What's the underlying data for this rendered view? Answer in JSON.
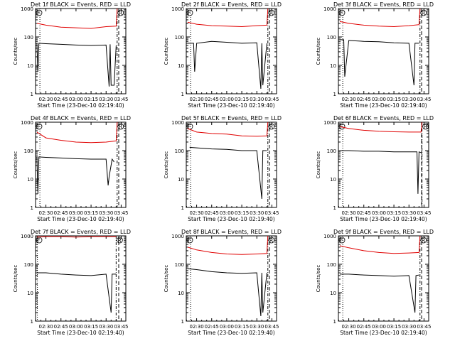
{
  "figure": {
    "x_ticks": [
      "02:30",
      "02:45",
      "03:00",
      "03:15",
      "03:30",
      "03:45"
    ],
    "y_ticks": [
      "1",
      "10",
      "100",
      "1000"
    ],
    "ylabel": "Counts/sec",
    "xlabel": "Start Time (23-Dec-10 02:19:40)",
    "marker_left": "F",
    "marker_right": "R",
    "colors": {
      "events": "#000000",
      "lld": "#e00000",
      "axes": "#000000"
    }
  },
  "chart_data": [
    {
      "type": "line",
      "title": "Det 1f BLACK = Events, RED = LLD",
      "yscale": "log",
      "ylim": [
        1,
        1000
      ],
      "xlabel": "Start Time (23-Dec-10 02:19:40)",
      "ylabel": "Counts/sec",
      "series": [
        {
          "name": "Events",
          "color": "#000000",
          "x": [
            "02:21",
            "02:22",
            "02:23",
            "02:30",
            "02:45",
            "03:00",
            "03:15",
            "03:30",
            "03:33",
            "03:34",
            "03:35",
            "03:38",
            "03:40"
          ],
          "y": [
            60,
            6,
            60,
            58,
            55,
            52,
            50,
            52,
            1.8,
            55,
            2,
            2,
            50
          ]
        },
        {
          "name": "LLD",
          "color": "#e00000",
          "x": [
            "02:21",
            "02:30",
            "02:45",
            "03:00",
            "03:15",
            "03:30",
            "03:40",
            "03:41"
          ],
          "y": [
            300,
            260,
            220,
            210,
            200,
            230,
            240,
            1000
          ]
        }
      ]
    },
    {
      "type": "line",
      "title": "Det 2f BLACK = Events, RED = LLD",
      "yscale": "log",
      "ylim": [
        1,
        1000
      ],
      "xlabel": "Start Time (23-Dec-10 02:19:40)",
      "ylabel": "Counts/sec",
      "series": [
        {
          "name": "Events",
          "color": "#000000",
          "x": [
            "02:21",
            "02:27",
            "02:28",
            "02:30",
            "02:45",
            "03:00",
            "03:15",
            "03:30",
            "03:34",
            "03:35",
            "03:36",
            "03:40"
          ],
          "y": [
            60,
            60,
            6,
            60,
            70,
            65,
            60,
            62,
            1.5,
            60,
            2,
            60
          ]
        },
        {
          "name": "LLD",
          "color": "#e00000",
          "x": [
            "02:21",
            "02:30",
            "02:45",
            "03:00",
            "03:15",
            "03:30",
            "03:40",
            "03:41"
          ],
          "y": [
            330,
            280,
            250,
            240,
            230,
            250,
            260,
            1000
          ]
        }
      ]
    },
    {
      "type": "line",
      "title": "Det 3f BLACK = Events, RED = LLD",
      "yscale": "log",
      "ylim": [
        1,
        1000
      ],
      "xlabel": "Start Time (23-Dec-10 02:19:40)",
      "ylabel": "Counts/sec",
      "series": [
        {
          "name": "Events",
          "color": "#000000",
          "x": [
            "02:21",
            "02:25",
            "02:26",
            "02:30",
            "02:45",
            "03:00",
            "03:15",
            "03:30",
            "03:35",
            "03:36",
            "03:40"
          ],
          "y": [
            80,
            80,
            4,
            75,
            70,
            68,
            62,
            60,
            2,
            60,
            60
          ]
        },
        {
          "name": "LLD",
          "color": "#e00000",
          "x": [
            "02:21",
            "02:30",
            "02:45",
            "03:00",
            "03:15",
            "03:30",
            "03:40",
            "03:41"
          ],
          "y": [
            350,
            300,
            260,
            240,
            230,
            250,
            270,
            1000
          ]
        }
      ]
    },
    {
      "type": "line",
      "title": "Det 4f BLACK = Events, RED = LLD",
      "yscale": "log",
      "ylim": [
        1,
        1000
      ],
      "xlabel": "Start Time (23-Dec-10 02:19:40)",
      "ylabel": "Counts/sec",
      "series": [
        {
          "name": "Events",
          "color": "#000000",
          "x": [
            "02:21",
            "02:22",
            "02:23",
            "02:30",
            "02:45",
            "03:00",
            "03:15",
            "03:30",
            "03:32",
            "03:33",
            "03:36",
            "03:38"
          ],
          "y": [
            60,
            3,
            60,
            58,
            55,
            52,
            50,
            50,
            6,
            12,
            50,
            40
          ]
        },
        {
          "name": "LLD",
          "color": "#e00000",
          "x": [
            "02:21",
            "02:30",
            "02:45",
            "03:00",
            "03:15",
            "03:30",
            "03:40",
            "03:41"
          ],
          "y": [
            450,
            280,
            230,
            200,
            190,
            200,
            220,
            1000
          ]
        }
      ]
    },
    {
      "type": "line",
      "title": "Det 5f BLACK = Events, RED = LLD",
      "yscale": "log",
      "ylim": [
        1,
        1000
      ],
      "xlabel": "Start Time (23-Dec-10 02:19:40)",
      "ylabel": "Counts/sec",
      "series": [
        {
          "name": "Events",
          "color": "#000000",
          "x": [
            "02:23",
            "02:30",
            "02:45",
            "03:00",
            "03:15",
            "03:30",
            "03:35",
            "03:36",
            "03:40"
          ],
          "y": [
            130,
            125,
            115,
            110,
            100,
            100,
            2,
            100,
            100
          ]
        },
        {
          "name": "LLD",
          "color": "#e00000",
          "x": [
            "02:21",
            "02:30",
            "02:45",
            "03:00",
            "03:15",
            "03:30",
            "03:40",
            "03:41"
          ],
          "y": [
            600,
            450,
            400,
            380,
            330,
            320,
            330,
            1000
          ]
        }
      ]
    },
    {
      "type": "line",
      "title": "Det 6f BLACK = Events, RED = LLD",
      "yscale": "log",
      "ylim": [
        1,
        1000
      ],
      "xlabel": "Start Time (23-Dec-10 02:19:40)",
      "ylabel": "Counts/sec",
      "series": [
        {
          "name": "Events",
          "color": "#000000",
          "x": [
            "02:23",
            "02:30",
            "02:45",
            "03:00",
            "03:15",
            "03:30",
            "03:38",
            "03:39",
            "03:40",
            "03:42"
          ],
          "y": [
            100,
            100,
            95,
            95,
            90,
            90,
            90,
            3,
            90,
            85
          ]
        },
        {
          "name": "LLD",
          "color": "#e00000",
          "x": [
            "02:21",
            "02:30",
            "02:45",
            "03:00",
            "03:15",
            "03:30",
            "03:42",
            "03:43"
          ],
          "y": [
            700,
            600,
            520,
            480,
            460,
            450,
            450,
            1000
          ]
        }
      ]
    },
    {
      "type": "line",
      "title": "Det 7f BLACK = Events, RED = LLD",
      "yscale": "log",
      "ylim": [
        1,
        1000
      ],
      "xlabel": "Start Time (23-Dec-10 02:19:40)",
      "ylabel": "Counts/sec",
      "series": [
        {
          "name": "Events",
          "color": "#000000",
          "x": [
            "02:21",
            "02:30",
            "02:45",
            "03:00",
            "03:15",
            "03:30",
            "03:35",
            "03:36",
            "03:40"
          ],
          "y": [
            50,
            50,
            45,
            42,
            40,
            45,
            2,
            45,
            45
          ]
        },
        {
          "name": "LLD",
          "color": "#e00000",
          "x": [
            "02:21",
            "02:30",
            "02:45",
            "03:00",
            "03:15",
            "03:30",
            "03:40"
          ],
          "y": [
            900,
            950,
            950,
            900,
            950,
            950,
            950
          ]
        }
      ]
    },
    {
      "type": "line",
      "title": "Det 8f BLACK = Events, RED = LLD",
      "yscale": "log",
      "ylim": [
        1,
        1000
      ],
      "xlabel": "Start Time (23-Dec-10 02:19:40)",
      "ylabel": "Counts/sec",
      "series": [
        {
          "name": "Events",
          "color": "#000000",
          "x": [
            "02:21",
            "02:30",
            "02:45",
            "03:00",
            "03:15",
            "03:30",
            "03:34",
            "03:35",
            "03:36",
            "03:40"
          ],
          "y": [
            70,
            65,
            55,
            50,
            48,
            50,
            1.5,
            50,
            2,
            50
          ]
        },
        {
          "name": "LLD",
          "color": "#e00000",
          "x": [
            "02:21",
            "02:30",
            "02:45",
            "03:00",
            "03:15",
            "03:30",
            "03:40",
            "03:41"
          ],
          "y": [
            400,
            320,
            260,
            230,
            220,
            230,
            240,
            1000
          ]
        }
      ]
    },
    {
      "type": "line",
      "title": "Det 9f BLACK = Events, RED = LLD",
      "yscale": "log",
      "ylim": [
        1,
        1000
      ],
      "xlabel": "Start Time (23-Dec-10 02:19:40)",
      "ylabel": "Counts/sec",
      "series": [
        {
          "name": "Events",
          "color": "#000000",
          "x": [
            "02:21",
            "02:30",
            "02:45",
            "03:00",
            "03:15",
            "03:30",
            "03:36",
            "03:37",
            "03:40"
          ],
          "y": [
            45,
            45,
            42,
            40,
            38,
            40,
            2,
            40,
            42
          ]
        },
        {
          "name": "LLD",
          "color": "#e00000",
          "x": [
            "02:21",
            "02:30",
            "02:45",
            "03:00",
            "03:15",
            "03:30",
            "03:40",
            "03:41"
          ],
          "y": [
            450,
            380,
            300,
            260,
            240,
            250,
            260,
            1000
          ]
        }
      ]
    }
  ]
}
